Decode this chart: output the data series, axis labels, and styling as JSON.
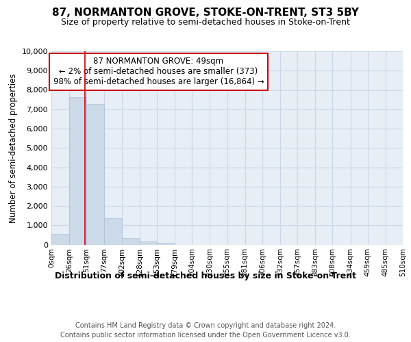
{
  "title": "87, NORMANTON GROVE, STOKE-ON-TRENT, ST3 5BY",
  "subtitle": "Size of property relative to semi-detached houses in Stoke-on-Trent",
  "xlabel": "Distribution of semi-detached houses by size in Stoke-on-Trent",
  "ylabel": "Number of semi-detached properties",
  "footer_line1": "Contains HM Land Registry data © Crown copyright and database right 2024.",
  "footer_line2": "Contains public sector information licensed under the Open Government Licence v3.0.",
  "annotation_line1": "87 NORMANTON GROVE: 49sqm",
  "annotation_line2": "← 2% of semi-detached houses are smaller (373)",
  "annotation_line3": "98% of semi-detached houses are larger (16,864) →",
  "property_size_sqm": 49,
  "bar_color": "#ccd9e8",
  "bar_edge_color": "#aac0d8",
  "highlight_color": "#cc0000",
  "axes_bg_color": "#e8eef5",
  "grid_color": "#c8d8e8",
  "background_color": "#ffffff",
  "bin_edges": [
    0,
    26,
    51,
    77,
    102,
    128,
    153,
    179,
    204,
    230,
    255,
    281,
    306,
    332,
    357,
    383,
    408,
    434,
    459,
    485,
    510
  ],
  "bin_labels": [
    "0sqm",
    "26sqm",
    "51sqm",
    "77sqm",
    "102sqm",
    "128sqm",
    "153sqm",
    "179sqm",
    "204sqm",
    "230sqm",
    "255sqm",
    "281sqm",
    "306sqm",
    "332sqm",
    "357sqm",
    "383sqm",
    "408sqm",
    "434sqm",
    "459sqm",
    "485sqm",
    "510sqm"
  ],
  "bar_heights": [
    560,
    7620,
    7280,
    1350,
    350,
    160,
    100,
    0,
    0,
    0,
    0,
    0,
    0,
    0,
    0,
    0,
    0,
    0,
    0,
    0
  ],
  "ylim": [
    0,
    10000
  ],
  "yticks": [
    0,
    1000,
    2000,
    3000,
    4000,
    5000,
    6000,
    7000,
    8000,
    9000,
    10000
  ]
}
